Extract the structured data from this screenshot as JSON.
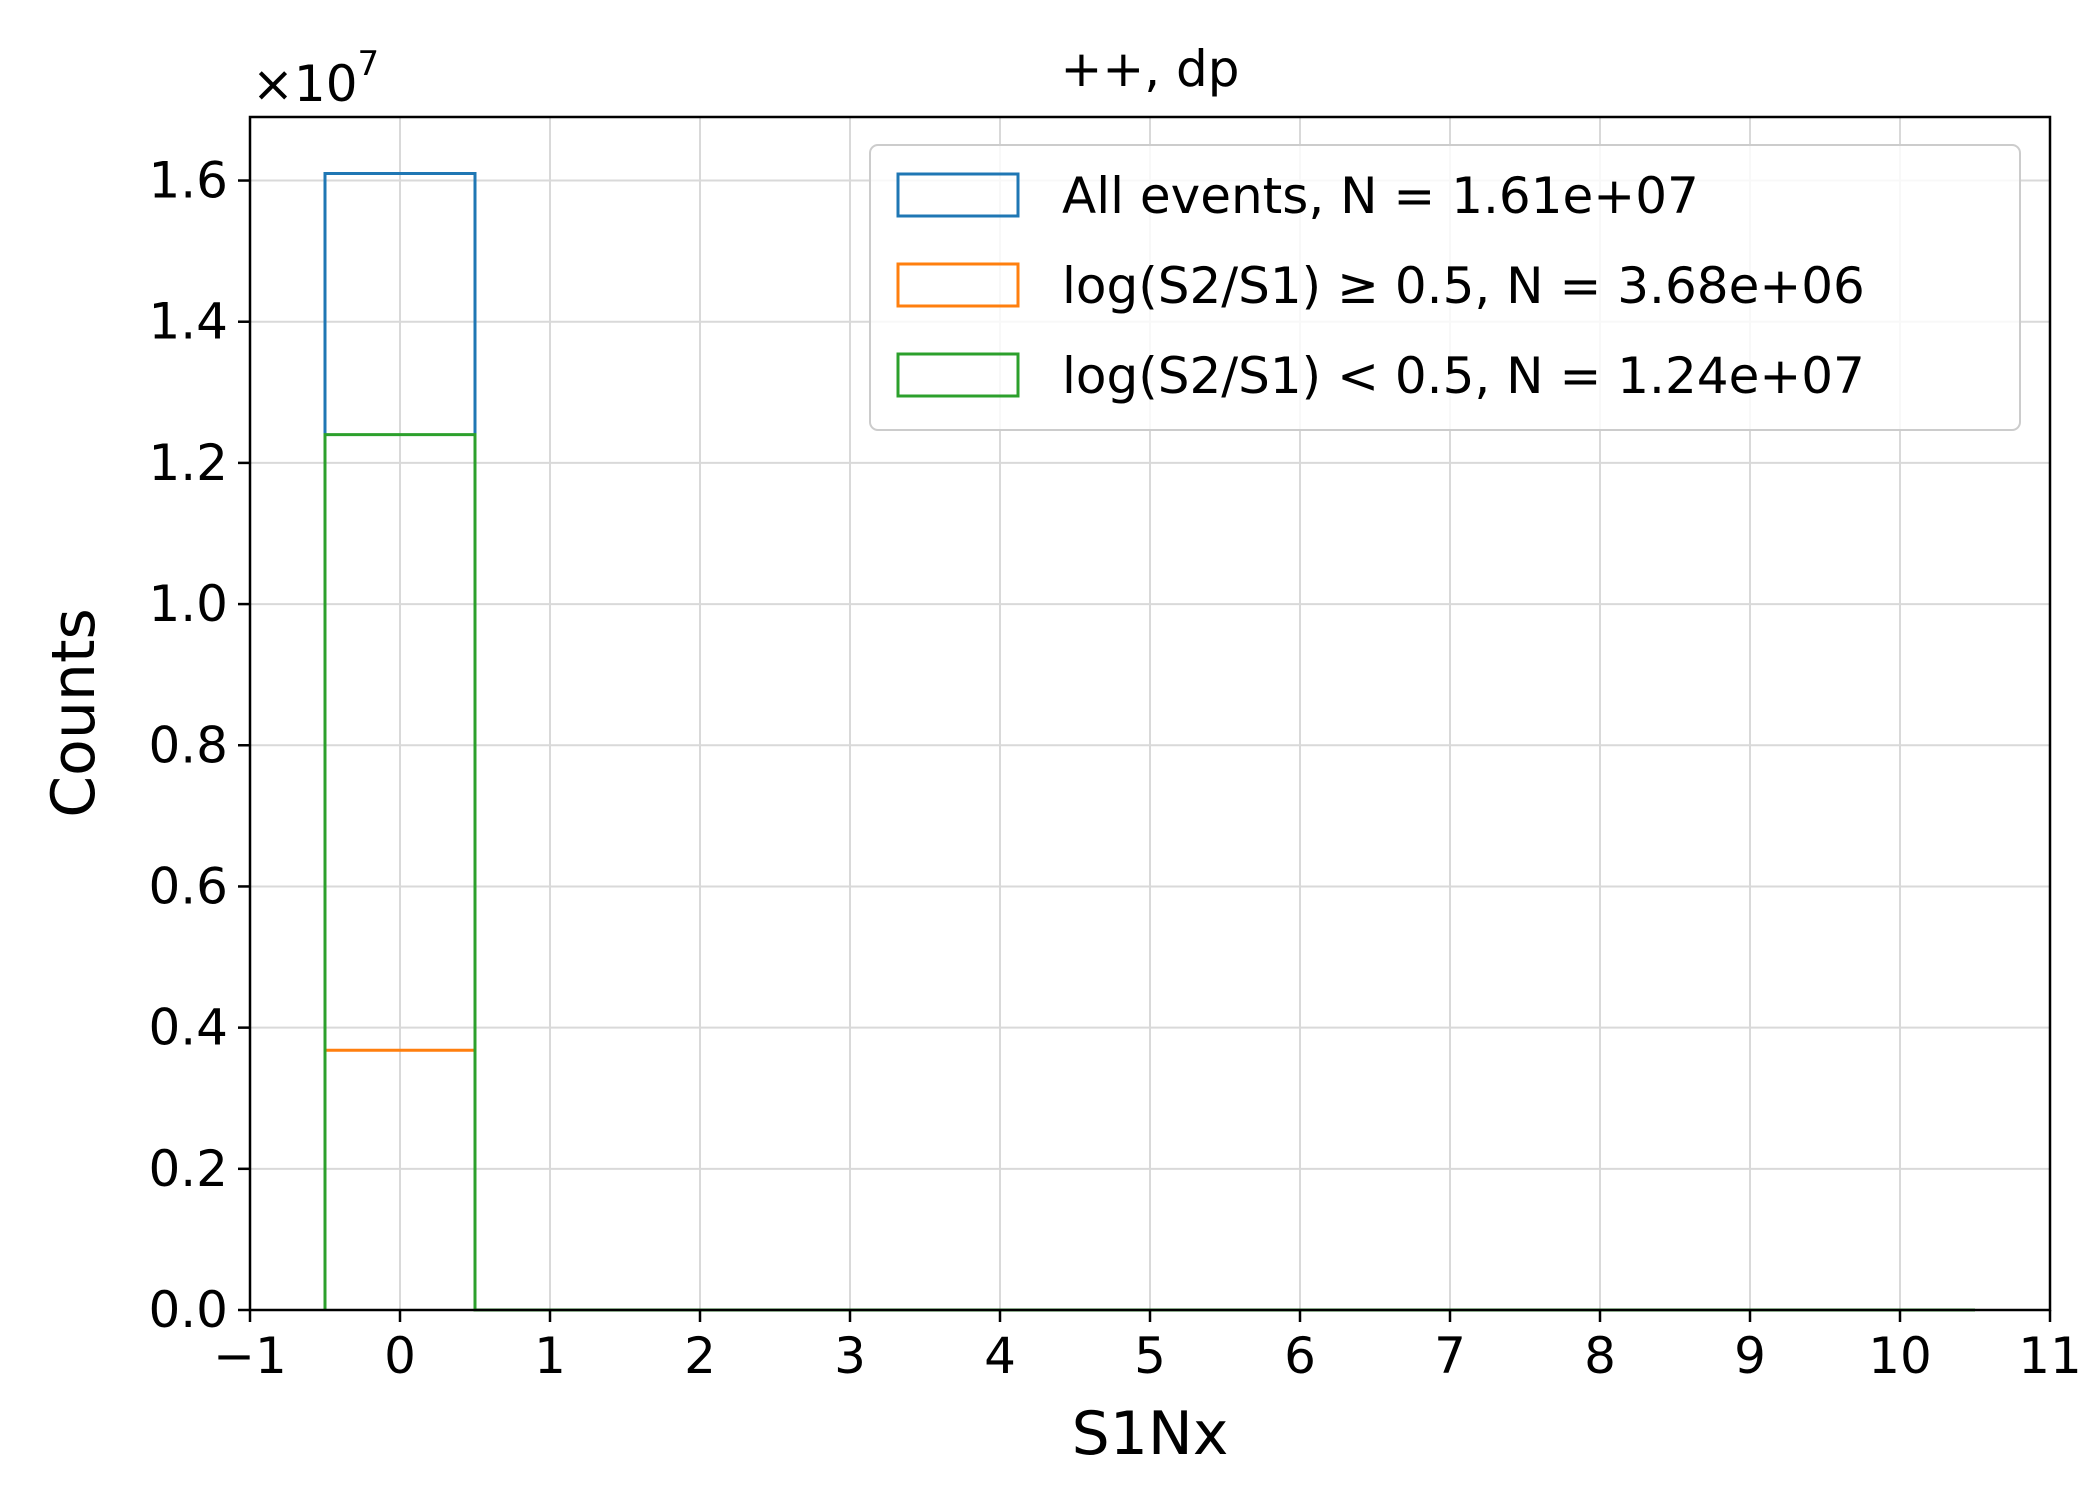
{
  "chart_data": {
    "type": "bar",
    "title": "++, dp",
    "xlabel": "S1Nx",
    "ylabel": "Counts",
    "xlabel_color": "#ff0000",
    "offset_text": "×10",
    "offset_exponent": "7",
    "xlim": [
      -1,
      11
    ],
    "ylim": [
      0,
      1.69
    ],
    "x_ticks": [
      "−1",
      "0",
      "1",
      "2",
      "3",
      "4",
      "5",
      "6",
      "7",
      "8",
      "9",
      "10",
      "11"
    ],
    "y_ticks": [
      "0.0",
      "0.2",
      "0.4",
      "0.6",
      "0.8",
      "1.0",
      "1.2",
      "1.4",
      "1.6"
    ],
    "grid": true,
    "legend_position": "top-right",
    "bin_edges": [
      -0.5,
      0.5,
      1.5,
      2.5,
      3.5,
      4.5,
      5.5,
      6.5,
      7.5,
      8.5,
      9.5,
      10.5
    ],
    "series": [
      {
        "name": "All events, N = 1.61e+07",
        "color": "#1f77b4",
        "values": [
          1.61,
          0,
          0,
          0,
          0,
          0,
          0,
          0,
          0,
          0,
          0
        ]
      },
      {
        "name": "log(S2/S1) ≥ 0.5, N = 3.68e+06",
        "color": "#ff7f0e",
        "values": [
          0.368,
          0,
          0,
          0,
          0,
          0,
          0,
          0,
          0,
          0,
          0
        ]
      },
      {
        "name": "log(S2/S1) < 0.5, N = 1.24e+07",
        "color": "#2ca02c",
        "values": [
          1.24,
          0,
          0,
          0,
          0,
          0,
          0,
          0,
          0,
          0,
          0
        ]
      }
    ]
  }
}
